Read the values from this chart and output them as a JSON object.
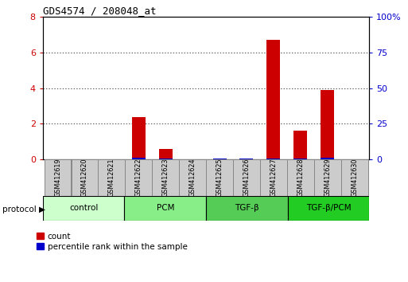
{
  "title": "GDS4574 / 208048_at",
  "categories": [
    "GSM412619",
    "GSM412620",
    "GSM412621",
    "GSM412622",
    "GSM412623",
    "GSM412624",
    "GSM412625",
    "GSM412626",
    "GSM412627",
    "GSM412628",
    "GSM412629",
    "GSM412630"
  ],
  "count_values": [
    0,
    0,
    0,
    2.35,
    0.6,
    0,
    0,
    0,
    6.7,
    1.6,
    3.9,
    0
  ],
  "percentile_values_pct": [
    0,
    0,
    0,
    1.0,
    0.7,
    0,
    0.8,
    0.7,
    0.8,
    0.7,
    1.0,
    0
  ],
  "ylim_left": [
    0,
    8
  ],
  "ylim_right": [
    0,
    100
  ],
  "yticks_left": [
    0,
    2,
    4,
    6,
    8
  ],
  "ytick_labels_left": [
    "0",
    "2",
    "4",
    "6",
    "8"
  ],
  "yticks_right": [
    0,
    25,
    50,
    75,
    100
  ],
  "ytick_labels_right": [
    "0",
    "25",
    "50",
    "75",
    "100%"
  ],
  "bar_color_red": "#cc0000",
  "bar_color_blue": "#0000cc",
  "tick_label_color_left": "#cc0000",
  "tick_label_color_right": "#0000cc",
  "bar_width": 0.5,
  "legend_count": "count",
  "legend_percentile": "percentile rank within the sample",
  "group_info": [
    {
      "label": "control",
      "start": 0,
      "end": 3,
      "color": "#ccffcc"
    },
    {
      "label": "PCM",
      "start": 3,
      "end": 6,
      "color": "#88ee88"
    },
    {
      "label": "TGF-β",
      "start": 6,
      "end": 9,
      "color": "#55cc55"
    },
    {
      "label": "TGF-β/PCM",
      "start": 9,
      "end": 12,
      "color": "#22cc22"
    }
  ],
  "label_box_color": "#cccccc",
  "label_box_edge": "#888888"
}
